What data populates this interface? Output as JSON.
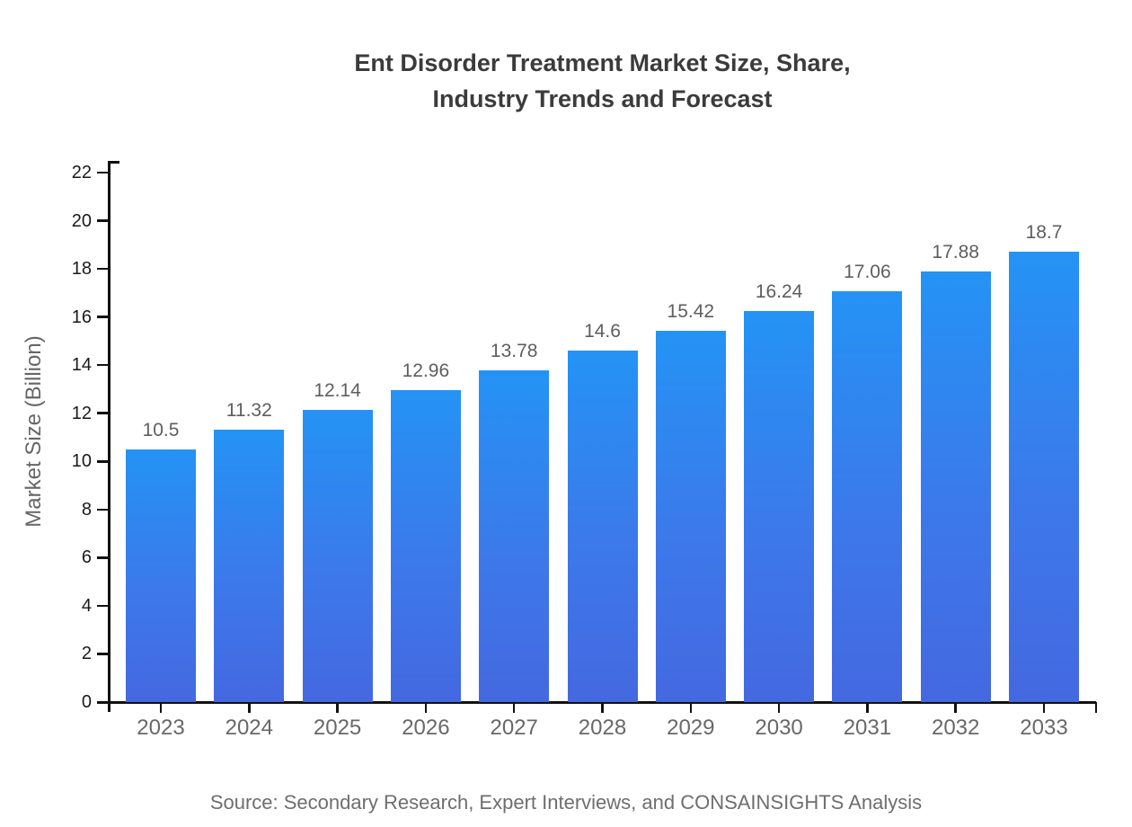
{
  "title": {
    "line1": "Ent Disorder Treatment Market Size, Share,",
    "line2": "Industry Trends and Forecast"
  },
  "source": "Source: Secondary Research, Expert Interviews, and CONSAINSIGHTS Analysis",
  "chart_data": {
    "type": "bar",
    "title": "Ent Disorder Treatment Market Size, Share, Industry Trends and Forecast",
    "xlabel": "",
    "ylabel": "Market Size (Billion)",
    "categories": [
      "2023",
      "2024",
      "2025",
      "2026",
      "2027",
      "2028",
      "2029",
      "2030",
      "2031",
      "2032",
      "2033"
    ],
    "values": [
      10.5,
      11.32,
      12.14,
      12.96,
      13.78,
      14.6,
      15.42,
      16.24,
      17.06,
      17.88,
      18.7
    ],
    "value_labels": [
      "10.5",
      "11.32",
      "12.14",
      "12.96",
      "13.78",
      "14.6",
      "15.42",
      "16.24",
      "17.06",
      "17.88",
      "18.7"
    ],
    "ylim": [
      0,
      22
    ],
    "yticks": [
      0,
      2,
      4,
      6,
      8,
      10,
      12,
      14,
      16,
      18,
      20,
      22
    ],
    "grid": false,
    "legend_position": "none",
    "bar_gradient_top": "#2493f5",
    "bar_gradient_bottom": "#4468e0",
    "axis_color": "#111111",
    "ytick_label_color": "#1a1a1a",
    "xtick_label_color": "#686868",
    "value_label_color": "#5e5e5e",
    "title_color": "#3b3b3b",
    "background_color": "#ffffff"
  }
}
